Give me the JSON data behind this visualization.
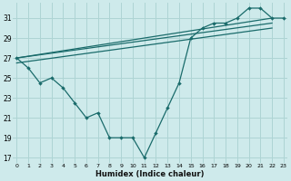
{
  "xlabel": "Humidex (Indice chaleur)",
  "bg_color": "#ceeaeb",
  "grid_color": "#aed4d4",
  "line_color": "#1a6b6b",
  "xlim": [
    0,
    23
  ],
  "ylim": [
    16.5,
    32.5
  ],
  "yticks": [
    17,
    19,
    21,
    23,
    25,
    27,
    29,
    31
  ],
  "xticks": [
    0,
    1,
    2,
    3,
    4,
    5,
    6,
    7,
    8,
    9,
    10,
    11,
    12,
    13,
    14,
    15,
    16,
    17,
    18,
    19,
    20,
    21,
    22,
    23
  ],
  "main_x": [
    0,
    1,
    2,
    3,
    4,
    5,
    6,
    7,
    8,
    9,
    10,
    11,
    12,
    13,
    14,
    15,
    16,
    17,
    18,
    19,
    20,
    21,
    22,
    23
  ],
  "main_y": [
    27,
    26,
    24.5,
    25,
    24,
    22.5,
    21,
    21.5,
    19,
    19,
    19,
    17,
    19.5,
    22,
    24.5,
    29,
    30,
    30.5,
    30.5,
    31,
    32,
    32,
    31,
    31
  ],
  "trend1_x": [
    0,
    22
  ],
  "trend1_y": [
    27,
    31
  ],
  "trend2_x": [
    0,
    22
  ],
  "trend2_y": [
    27,
    30.5
  ],
  "trend3_x": [
    0,
    22
  ],
  "trend3_y": [
    26.5,
    30
  ]
}
